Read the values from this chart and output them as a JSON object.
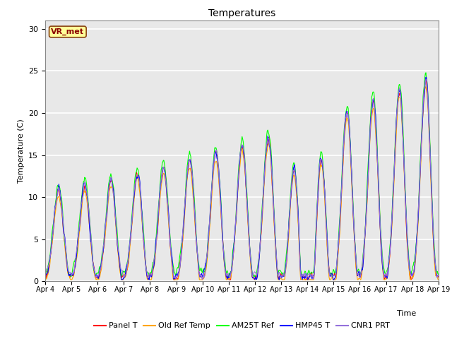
{
  "title": "Temperatures",
  "ylabel": "Temperature (C)",
  "xlabel": "Time",
  "annotation": "VR_met",
  "legend": [
    "Panel T",
    "Old Ref Temp",
    "AM25T Ref",
    "HMP45 T",
    "CNR1 PRT"
  ],
  "colors": [
    "red",
    "orange",
    "lime",
    "blue",
    "mediumpurple"
  ],
  "ylim": [
    0,
    31
  ],
  "axes_bg": "#e8e8e8",
  "grid_color": "white",
  "tick_labels": [
    "Apr 4",
    "Apr 5",
    "Apr 6",
    "Apr 7",
    "Apr 8",
    "Apr 9",
    "Apr 10",
    "Apr 11",
    "Apr 12",
    "Apr 13",
    "Apr 14",
    "Apr 15",
    "Apr 16",
    "Apr 17",
    "Apr 18",
    "Apr 19"
  ]
}
